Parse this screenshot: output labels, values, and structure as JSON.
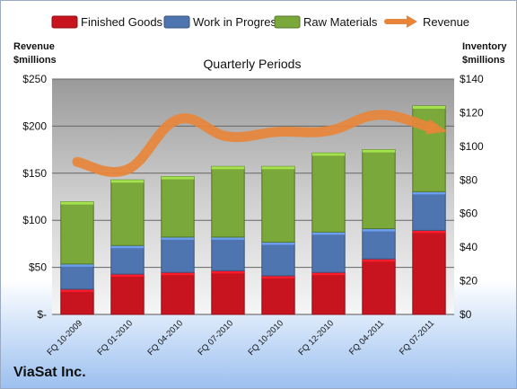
{
  "chart_data": {
    "type": "bar",
    "stacked": true,
    "title": "Quarterly Periods",
    "footer": "ViaSat Inc.",
    "categories": [
      "FQ 10-2009",
      "FQ 01-2010",
      "FQ 04-2010",
      "FQ 07-2010",
      "FQ 10-2010",
      "FQ 12-2010",
      "FQ 04-2011",
      "FQ 07-2011"
    ],
    "series": [
      {
        "name": "Finished Goods",
        "axis": "right",
        "color": "#c8141e",
        "values": [
          15,
          24,
          25,
          26,
          23,
          25,
          33,
          50
        ]
      },
      {
        "name": "Work in Progress",
        "axis": "right",
        "color": "#4f75b0",
        "values": [
          15,
          17,
          21,
          20,
          20,
          24,
          18,
          23
        ]
      },
      {
        "name": "Raw Materials",
        "axis": "right",
        "color": "#7aa83a",
        "values": [
          37,
          39,
          36,
          42,
          45,
          47,
          47,
          51
        ]
      },
      {
        "name": "Revenue",
        "axis": "left",
        "type": "line",
        "color": "#e8853a",
        "values": [
          162,
          154,
          207,
          189,
          194,
          195,
          212,
          199
        ]
      }
    ],
    "y_left": {
      "label_line1": "Revenue",
      "label_line2": "$millions",
      "lim": [
        0,
        250
      ],
      "ticks": [
        0,
        50,
        100,
        150,
        200,
        250
      ],
      "tick_labels": [
        "$-",
        "$50",
        "$100",
        "$150",
        "$200",
        "$250"
      ]
    },
    "y_right": {
      "label_line1": "Inventory",
      "label_line2": "$millions",
      "lim": [
        0,
        140
      ],
      "ticks": [
        0,
        20,
        40,
        60,
        80,
        100,
        120,
        140
      ],
      "tick_labels": [
        "$0",
        "$20",
        "$40",
        "$60",
        "$80",
        "$100",
        "$120",
        "$140"
      ]
    },
    "grid": true,
    "legend_position": "top"
  }
}
